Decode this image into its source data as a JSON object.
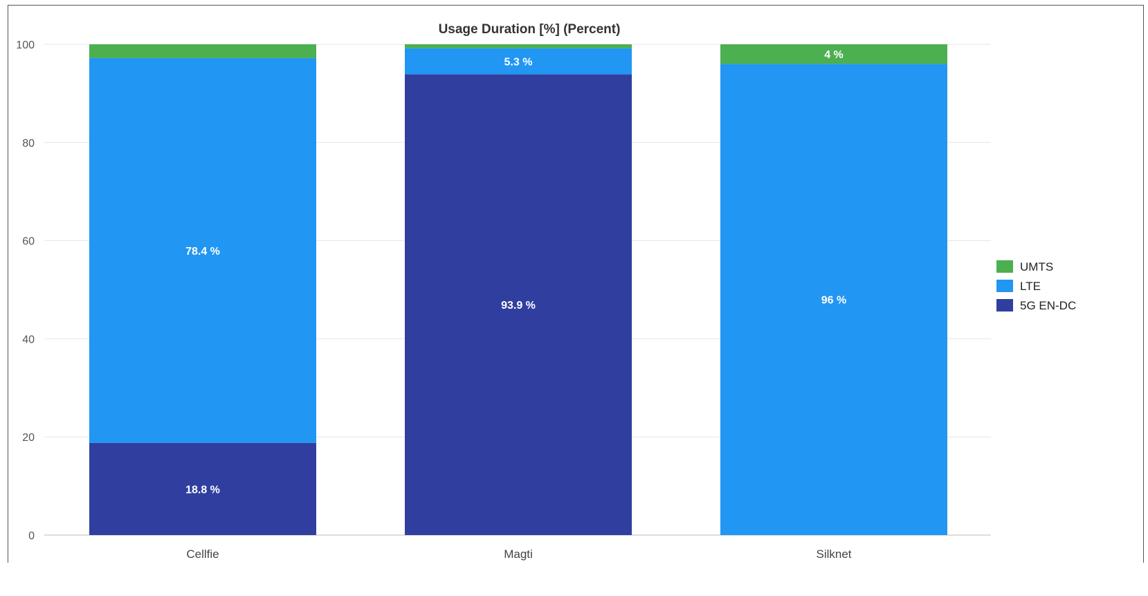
{
  "chart_data": {
    "type": "bar",
    "stacked": true,
    "title": "Usage Duration [%] (Percent)",
    "xlabel": "",
    "ylabel": "",
    "ylim": [
      0,
      100
    ],
    "yticks": [
      0,
      20,
      40,
      60,
      80,
      100
    ],
    "grid": true,
    "legend_position": "right",
    "categories": [
      "Cellfie",
      "Magti",
      "Silknet"
    ],
    "series": [
      {
        "name": "5G EN-DC",
        "color": "#303f9f",
        "values": [
          18.8,
          93.9,
          0
        ],
        "labels": [
          "18.8 %",
          "93.9 %",
          ""
        ]
      },
      {
        "name": "LTE",
        "color": "#2196f3",
        "values": [
          78.4,
          5.3,
          96
        ],
        "labels": [
          "78.4 %",
          "5.3 %",
          "96 %"
        ]
      },
      {
        "name": "UMTS",
        "color": "#4caf50",
        "values": [
          2.8,
          0.8,
          4
        ],
        "labels": [
          "",
          "",
          "4 %"
        ]
      }
    ],
    "legend_order": [
      "UMTS",
      "LTE",
      "5G EN-DC"
    ]
  }
}
